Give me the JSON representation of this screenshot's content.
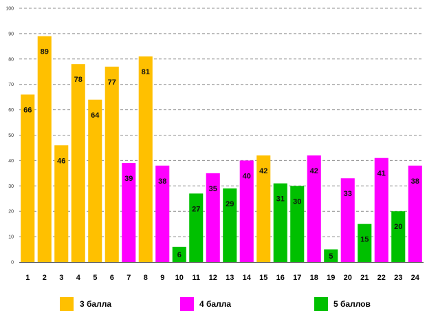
{
  "chart_data": {
    "type": "bar",
    "title": "",
    "xlabel": "",
    "ylabel": "",
    "ylim": [
      0,
      100
    ],
    "yticks": [
      0,
      10,
      20,
      30,
      40,
      50,
      60,
      70,
      80,
      90,
      100
    ],
    "grid": true,
    "legend_position": "bottom",
    "categories": [
      "1",
      "2",
      "3",
      "4",
      "5",
      "6",
      "7",
      "8",
      "9",
      "10",
      "11",
      "12",
      "13",
      "14",
      "15",
      "16",
      "17",
      "18",
      "19",
      "20",
      "21",
      "22",
      "23",
      "24"
    ],
    "values": [
      66,
      89,
      46,
      78,
      64,
      77,
      39,
      81,
      38,
      6,
      27,
      35,
      29,
      40,
      42,
      31,
      30,
      42,
      5,
      33,
      15,
      41,
      20,
      38
    ],
    "value_labels": [
      "66",
      "89",
      "46",
      "78",
      "64",
      "77",
      "39",
      "81",
      "38",
      "6",
      "27",
      "35",
      "29",
      "40",
      "42",
      "31",
      "30",
      "42",
      "5",
      "33",
      "15",
      "41",
      "20",
      "38"
    ],
    "bar_groups": [
      "3",
      "3",
      "3",
      "3",
      "3",
      "3",
      "4",
      "3",
      "4",
      "5",
      "5",
      "4",
      "5",
      "4",
      "3",
      "5",
      "5",
      "4",
      "5",
      "4",
      "5",
      "4",
      "5",
      "4"
    ],
    "series": [
      {
        "key": "3",
        "name": "3 балла",
        "color": "#ffc000"
      },
      {
        "key": "4",
        "name": "4 балла",
        "color": "#ff00ff"
      },
      {
        "key": "5",
        "name": "5 баллов",
        "color": "#00c000"
      }
    ]
  }
}
